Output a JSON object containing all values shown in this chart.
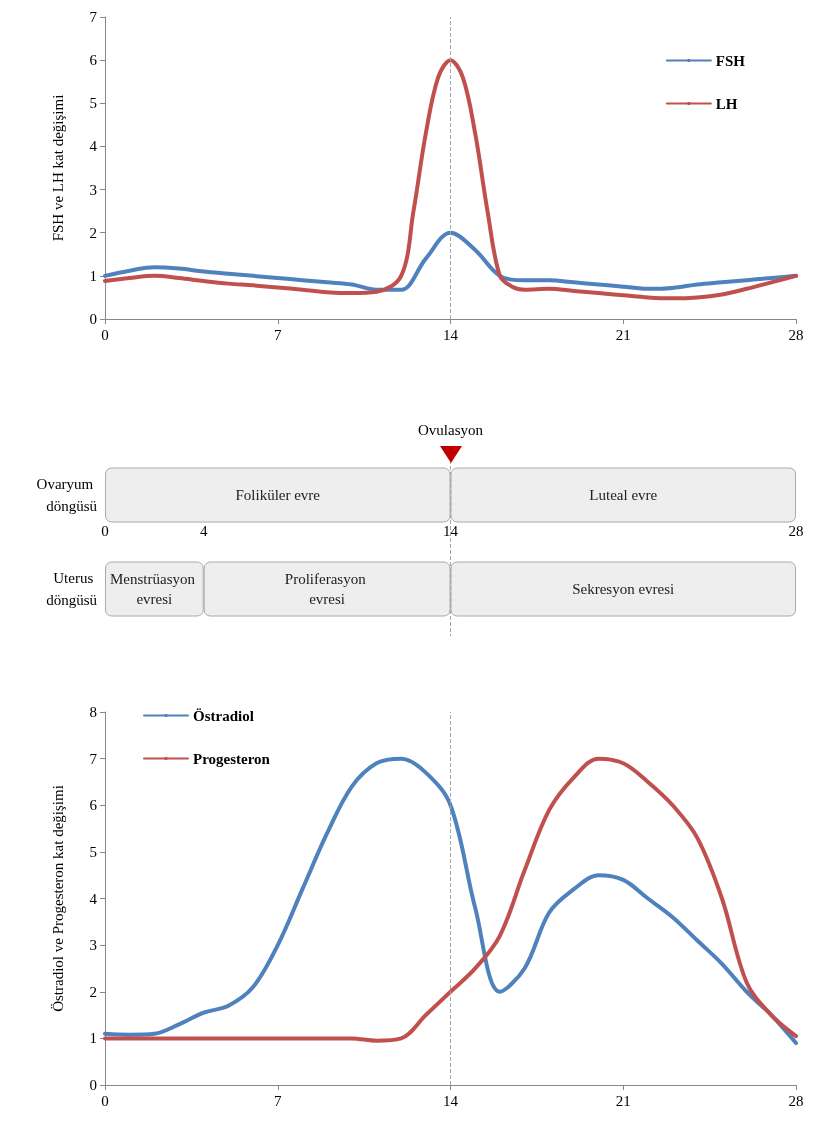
{
  "chart_data": [
    {
      "type": "line",
      "ylabel": "FSH ve LH kat değişimi",
      "xlim": [
        0,
        28
      ],
      "xticks": [
        0,
        7,
        14,
        21,
        28
      ],
      "ylim": [
        0,
        7
      ],
      "yticks": [
        0,
        1,
        2,
        3,
        4,
        5,
        6,
        7
      ],
      "grid": false,
      "legend": "top right",
      "marker": "none",
      "line_style": "solid",
      "ref_lines": [
        {
          "axis": "x",
          "value": 14,
          "color": "#a6a6a6",
          "line_style": "dashed"
        }
      ],
      "series": [
        {
          "name": "FSH",
          "color": "#4f81bd",
          "x": [
            0,
            1,
            2,
            3,
            4,
            5,
            6,
            7,
            8,
            9,
            10,
            11,
            12,
            13,
            14,
            15,
            16,
            17,
            18,
            19,
            20,
            21,
            22,
            23,
            24,
            25,
            26,
            27,
            28
          ],
          "values": [
            1.0,
            1.12,
            1.2,
            1.17,
            1.1,
            1.05,
            1.0,
            0.95,
            0.9,
            0.85,
            0.8,
            0.68,
            0.68,
            1.4,
            2.0,
            1.6,
            1.0,
            0.9,
            0.9,
            0.85,
            0.8,
            0.75,
            0.7,
            0.72,
            0.8,
            0.85,
            0.9,
            0.95,
            1.0
          ]
        },
        {
          "name": "LH",
          "color": "#c0504d",
          "x": [
            0,
            1,
            2,
            3,
            4,
            5,
            6,
            7,
            8,
            9,
            10,
            11,
            12,
            12.5,
            13,
            13.5,
            14,
            14.5,
            15,
            15.5,
            16,
            16.5,
            17,
            18,
            19,
            20,
            21,
            22,
            23,
            24,
            25,
            26,
            27,
            28
          ],
          "values": [
            0.88,
            0.95,
            1.0,
            0.95,
            0.88,
            0.82,
            0.78,
            0.73,
            0.68,
            0.62,
            0.6,
            0.63,
            1.0,
            2.5,
            4.3,
            5.6,
            6.0,
            5.6,
            4.3,
            2.5,
            1.0,
            0.75,
            0.68,
            0.7,
            0.65,
            0.6,
            0.55,
            0.5,
            0.48,
            0.5,
            0.57,
            0.7,
            0.85,
            1.0
          ]
        }
      ]
    },
    {
      "type": "bar",
      "orientation": "horizontal",
      "stacked": true,
      "categories": [
        "Ovaryum döngüsü",
        "Uterus döngüsü"
      ],
      "xlim": [
        0,
        28
      ],
      "xticks": [
        0,
        4,
        14,
        28
      ],
      "grid": false,
      "ref_lines": [
        {
          "axis": "x",
          "value": 14,
          "color": "#a6a6a6",
          "line_style": "dashed"
        }
      ],
      "annotations": [
        "Ovulasyon"
      ],
      "series": [
        {
          "color": "#eeeeee",
          "values": [
            14,
            4
          ],
          "value_labels": [
            "Foliküler evre",
            "Menstrüasyon evresi"
          ]
        },
        {
          "color": "#eeeeee",
          "values": [
            14,
            10
          ],
          "value_labels": [
            "Luteal evre",
            "Proliferasyon evresi"
          ]
        },
        {
          "color": "#eeeeee",
          "values": [
            null,
            14
          ],
          "value_labels": [
            null,
            "Sekresyon evresi"
          ]
        }
      ]
    },
    {
      "type": "line",
      "ylabel": "Östradiol ve Progesteron kat değişimi",
      "xlim": [
        0,
        28
      ],
      "xticks": [
        0,
        7,
        14,
        21,
        28
      ],
      "ylim": [
        0,
        8
      ],
      "yticks": [
        0,
        1,
        2,
        3,
        4,
        5,
        6,
        7,
        8
      ],
      "grid": false,
      "legend": "top left",
      "marker": "none",
      "line_style": "solid",
      "ref_lines": [
        {
          "axis": "x",
          "value": 14,
          "color": "#a6a6a6",
          "line_style": "dashed"
        }
      ],
      "series": [
        {
          "name": "Östradiol",
          "color": "#4f81bd",
          "x": [
            0,
            1,
            2,
            3,
            4,
            5,
            6,
            7,
            8,
            9,
            10,
            11,
            12,
            13,
            14,
            15,
            16,
            17,
            18,
            19,
            20,
            21,
            22,
            23,
            24,
            25,
            26,
            27,
            28
          ],
          "values": [
            1.1,
            1.08,
            1.1,
            1.3,
            1.55,
            1.7,
            2.1,
            3.0,
            4.2,
            5.4,
            6.4,
            6.9,
            7.0,
            6.7,
            6.0,
            3.8,
            2.0,
            2.5,
            3.7,
            4.2,
            4.5,
            4.4,
            4.0,
            3.6,
            3.1,
            2.6,
            2.0,
            1.5,
            0.9
          ]
        },
        {
          "name": "Progesteron",
          "color": "#c0504d",
          "x": [
            0,
            1,
            2,
            3,
            4,
            5,
            6,
            7,
            8,
            9,
            10,
            11,
            12,
            13,
            14,
            15,
            16,
            17,
            18,
            19,
            20,
            21,
            22,
            23,
            24,
            25,
            26,
            27,
            28
          ],
          "values": [
            1.0,
            1.0,
            1.0,
            1.0,
            1.0,
            1.0,
            1.0,
            1.0,
            1.0,
            1.0,
            1.0,
            0.95,
            1.0,
            1.5,
            2.0,
            2.5,
            3.2,
            4.6,
            5.9,
            6.6,
            7.0,
            6.9,
            6.5,
            6.0,
            5.3,
            4.0,
            2.2,
            1.5,
            1.05
          ]
        }
      ]
    }
  ]
}
